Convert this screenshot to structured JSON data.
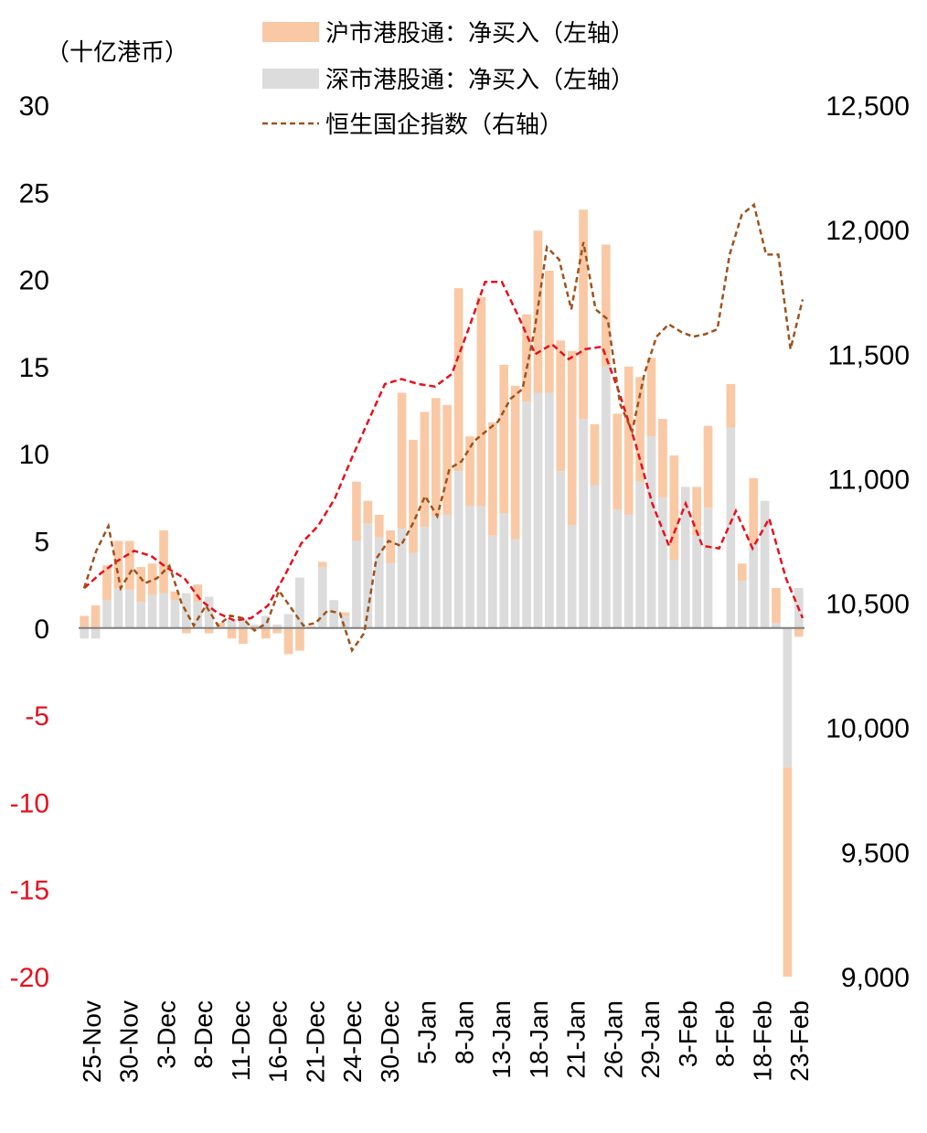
{
  "chart_data": {
    "type": "bar+line",
    "unit_label": "（十亿港币）",
    "legend": [
      {
        "label": "沪市港股通：净买入（左轴）",
        "kind": "bar",
        "color": "#f9c9a5"
      },
      {
        "label": "深市港股通：净买入（左轴）",
        "kind": "bar",
        "color": "#dcdcdc"
      },
      {
        "label": "恒生国企指数（右轴）",
        "kind": "dashed-line",
        "color": "#a0521c"
      }
    ],
    "left_axis": {
      "min": -20,
      "max": 30,
      "ticks": [
        "30",
        "25",
        "20",
        "15",
        "10",
        "5",
        "0",
        "-5",
        "-10",
        "-15",
        "-20"
      ]
    },
    "right_axis": {
      "min": 9000,
      "max": 12500,
      "ticks": [
        "12,500",
        "12,000",
        "11,500",
        "11,000",
        "10,500",
        "10,000",
        "9,500",
        "9,000"
      ]
    },
    "x_tick_labels": [
      "25-Nov",
      "30-Nov",
      "3-Dec",
      "8-Dec",
      "11-Dec",
      "16-Dec",
      "21-Dec",
      "24-Dec",
      "30-Dec",
      "5-Jan",
      "8-Jan",
      "13-Jan",
      "18-Jan",
      "21-Jan",
      "26-Jan",
      "29-Jan",
      "3-Feb",
      "8-Feb",
      "18-Feb",
      "23-Feb"
    ],
    "shanghai_net_buy": [
      0.7,
      1.3,
      2.0,
      2.7,
      2.8,
      2.0,
      1.8,
      3.6,
      0.5,
      -0.3,
      1.0,
      -0.3,
      0.3,
      -0.6,
      -0.9,
      -0.1,
      -0.6,
      -0.3,
      -1.5,
      -1.3,
      0.1,
      0.3,
      0.0,
      0.2,
      3.4,
      1.3,
      1.3,
      1.9,
      7.8,
      6.5,
      6.6,
      6.8,
      6.3,
      10.5,
      4.0,
      12.0,
      6.5,
      8.5,
      8.8,
      5.0,
      9.3,
      7.0,
      7.5,
      10.0,
      12.0,
      3.5,
      7.0,
      5.5,
      8.5,
      6.0,
      4.5,
      4.5,
      6.0,
      0.0,
      2.8,
      4.7,
      0.0,
      2.5,
      1.0,
      3.8,
      0.0,
      2.0,
      -12.0,
      -0.5
    ],
    "shenzhen_net_buy": [
      -0.6,
      -0.6,
      1.6,
      2.3,
      2.2,
      1.5,
      1.9,
      2.0,
      1.6,
      2.0,
      1.5,
      1.8,
      0.0,
      0.5,
      0.5,
      0.2,
      0.7,
      0.2,
      0.8,
      2.9,
      0.0,
      3.5,
      1.6,
      0.7,
      5.0,
      6.0,
      5.2,
      3.7,
      5.7,
      4.3,
      5.8,
      6.4,
      6.5,
      9.0,
      7.0,
      7.0,
      5.3,
      6.6,
      5.1,
      13.0,
      13.5,
      13.5,
      9.0,
      5.9,
      12.0,
      8.2,
      15.0,
      6.8,
      6.5,
      8.4,
      11.0,
      7.5,
      3.9,
      8.1,
      5.3,
      6.9,
      0.0,
      11.5,
      2.7,
      4.8,
      7.3,
      0.3,
      -8.0,
      2.3
    ],
    "hscei_index": [
      10560,
      10710,
      10810,
      10560,
      10640,
      10580,
      10600,
      10650,
      10500,
      10410,
      10490,
      10410,
      10450,
      10440,
      10390,
      10420,
      10550,
      10480,
      10410,
      10420,
      10470,
      10460,
      10310,
      10380,
      10680,
      10750,
      10730,
      10820,
      10930,
      10850,
      11040,
      11070,
      11150,
      11190,
      11230,
      11320,
      11360,
      11600,
      11930,
      11880,
      11680,
      11950,
      11680,
      11640,
      11300,
      11190,
      11420,
      11570,
      11620,
      11590,
      11570,
      11580,
      11600,
      11900,
      12060,
      12100,
      11900,
      11900,
      11520,
      11720
    ],
    "moving_average_red": [
      10560,
      10620,
      10670,
      10710,
      10690,
      10640,
      10600,
      10510,
      10460,
      10430,
      10440,
      10490,
      10610,
      10740,
      10810,
      10920,
      11080,
      11230,
      11380,
      11400,
      11380,
      11370,
      11420,
      11600,
      11790,
      11790,
      11650,
      11500,
      11540,
      11480,
      11520,
      11530,
      11350,
      11140,
      10900,
      10730,
      10900,
      10730,
      10720,
      10870,
      10720,
      10840,
      10600,
      10440
    ],
    "moving_average_color": "#e8101e",
    "negative_tick_color": "#e8101e",
    "bar_colors": {
      "shanghai": "#f9c9a5",
      "shenzhen": "#dcdcdc"
    },
    "line_color": "#a0521c",
    "zero_line_color": "#7f7f7f"
  }
}
